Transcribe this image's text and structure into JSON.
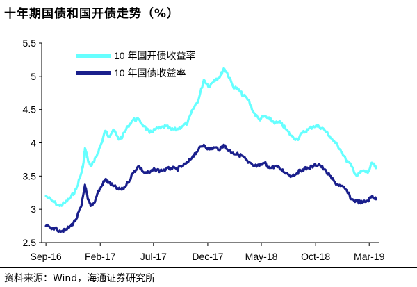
{
  "header": {
    "title": "十年期国债和国开债走势（%）"
  },
  "footer": {
    "source": "资料来源：Wind，海通证券研究所"
  },
  "chart_data": {
    "type": "line",
    "title": "十年期国债和国开债走势（%）",
    "xlabel": "",
    "ylabel": "",
    "ylim": [
      2.5,
      5.5
    ],
    "yticks": [
      "2.5",
      "3",
      "3.5",
      "4",
      "4.5",
      "5",
      "5.5"
    ],
    "xticks": [
      "Sep-16",
      "Feb-17",
      "Jul-17",
      "Dec-17",
      "May-18",
      "Oct-18",
      "Mar-19"
    ],
    "grid": false,
    "legend": "top-left",
    "series": [
      {
        "name": "10 年国开债收益率",
        "color": "#66ffff",
        "points": [
          [
            "2016-09-01",
            3.2
          ],
          [
            "2016-09-20",
            3.12
          ],
          [
            "2016-10-10",
            3.05
          ],
          [
            "2016-10-25",
            3.1
          ],
          [
            "2016-11-10",
            3.18
          ],
          [
            "2016-11-25",
            3.3
          ],
          [
            "2016-12-10",
            3.55
          ],
          [
            "2016-12-16",
            3.7
          ],
          [
            "2016-12-20",
            3.92
          ],
          [
            "2016-12-28",
            3.75
          ],
          [
            "2017-01-05",
            3.65
          ],
          [
            "2017-01-15",
            3.72
          ],
          [
            "2017-01-25",
            3.85
          ],
          [
            "2017-02-05",
            4.0
          ],
          [
            "2017-02-15",
            4.18
          ],
          [
            "2017-02-25",
            4.1
          ],
          [
            "2017-03-10",
            4.2
          ],
          [
            "2017-03-25",
            4.05
          ],
          [
            "2017-04-05",
            4.1
          ],
          [
            "2017-04-20",
            4.25
          ],
          [
            "2017-05-05",
            4.35
          ],
          [
            "2017-05-20",
            4.35
          ],
          [
            "2017-06-05",
            4.25
          ],
          [
            "2017-06-20",
            4.15
          ],
          [
            "2017-07-05",
            4.2
          ],
          [
            "2017-07-20",
            4.22
          ],
          [
            "2017-08-05",
            4.25
          ],
          [
            "2017-08-20",
            4.2
          ],
          [
            "2017-09-05",
            4.2
          ],
          [
            "2017-09-20",
            4.25
          ],
          [
            "2017-10-05",
            4.3
          ],
          [
            "2017-10-20",
            4.5
          ],
          [
            "2017-11-05",
            4.65
          ],
          [
            "2017-11-20",
            4.95
          ],
          [
            "2017-12-05",
            4.85
          ],
          [
            "2017-12-20",
            4.95
          ],
          [
            "2018-01-05",
            5.0
          ],
          [
            "2018-01-15",
            5.12
          ],
          [
            "2018-01-25",
            5.05
          ],
          [
            "2018-02-10",
            4.85
          ],
          [
            "2018-02-25",
            4.8
          ],
          [
            "2018-03-10",
            4.72
          ],
          [
            "2018-03-25",
            4.65
          ],
          [
            "2018-04-10",
            4.45
          ],
          [
            "2018-04-25",
            4.35
          ],
          [
            "2018-05-10",
            4.4
          ],
          [
            "2018-05-25",
            4.35
          ],
          [
            "2018-06-10",
            4.3
          ],
          [
            "2018-06-25",
            4.3
          ],
          [
            "2018-07-10",
            4.2
          ],
          [
            "2018-07-25",
            4.1
          ],
          [
            "2018-08-10",
            4.05
          ],
          [
            "2018-08-25",
            4.15
          ],
          [
            "2018-09-10",
            4.2
          ],
          [
            "2018-09-25",
            4.25
          ],
          [
            "2018-10-10",
            4.25
          ],
          [
            "2018-10-25",
            4.2
          ],
          [
            "2018-11-10",
            4.1
          ],
          [
            "2018-11-25",
            4.0
          ],
          [
            "2018-12-10",
            3.9
          ],
          [
            "2018-12-25",
            3.75
          ],
          [
            "2019-01-10",
            3.65
          ],
          [
            "2019-01-25",
            3.5
          ],
          [
            "2019-02-10",
            3.58
          ],
          [
            "2019-02-25",
            3.55
          ],
          [
            "2019-03-10",
            3.7
          ],
          [
            "2019-03-20",
            3.62
          ]
        ]
      },
      {
        "name": "10 年国债收益率",
        "color": "#1a1f8c",
        "points": [
          [
            "2016-09-01",
            2.75
          ],
          [
            "2016-09-20",
            2.72
          ],
          [
            "2016-10-10",
            2.68
          ],
          [
            "2016-10-25",
            2.68
          ],
          [
            "2016-11-10",
            2.75
          ],
          [
            "2016-11-25",
            2.85
          ],
          [
            "2016-12-10",
            3.05
          ],
          [
            "2016-12-20",
            3.37
          ],
          [
            "2016-12-28",
            3.15
          ],
          [
            "2017-01-05",
            3.05
          ],
          [
            "2017-01-15",
            3.1
          ],
          [
            "2017-01-25",
            3.25
          ],
          [
            "2017-02-05",
            3.35
          ],
          [
            "2017-02-15",
            3.45
          ],
          [
            "2017-02-25",
            3.4
          ],
          [
            "2017-03-10",
            3.35
          ],
          [
            "2017-03-25",
            3.3
          ],
          [
            "2017-04-05",
            3.3
          ],
          [
            "2017-04-20",
            3.4
          ],
          [
            "2017-05-05",
            3.55
          ],
          [
            "2017-05-20",
            3.65
          ],
          [
            "2017-06-05",
            3.55
          ],
          [
            "2017-06-20",
            3.55
          ],
          [
            "2017-07-05",
            3.6
          ],
          [
            "2017-07-20",
            3.58
          ],
          [
            "2017-08-05",
            3.6
          ],
          [
            "2017-08-20",
            3.62
          ],
          [
            "2017-09-05",
            3.6
          ],
          [
            "2017-09-20",
            3.65
          ],
          [
            "2017-10-05",
            3.7
          ],
          [
            "2017-10-20",
            3.8
          ],
          [
            "2017-11-05",
            3.9
          ],
          [
            "2017-11-20",
            3.97
          ],
          [
            "2017-12-05",
            3.9
          ],
          [
            "2017-12-20",
            3.93
          ],
          [
            "2018-01-05",
            3.9
          ],
          [
            "2018-01-15",
            3.97
          ],
          [
            "2018-01-25",
            3.9
          ],
          [
            "2018-02-10",
            3.85
          ],
          [
            "2018-02-25",
            3.82
          ],
          [
            "2018-03-10",
            3.8
          ],
          [
            "2018-03-25",
            3.7
          ],
          [
            "2018-04-10",
            3.65
          ],
          [
            "2018-04-25",
            3.65
          ],
          [
            "2018-05-10",
            3.7
          ],
          [
            "2018-05-25",
            3.62
          ],
          [
            "2018-06-10",
            3.65
          ],
          [
            "2018-06-25",
            3.6
          ],
          [
            "2018-07-10",
            3.55
          ],
          [
            "2018-07-25",
            3.5
          ],
          [
            "2018-08-10",
            3.55
          ],
          [
            "2018-08-25",
            3.6
          ],
          [
            "2018-09-10",
            3.62
          ],
          [
            "2018-09-25",
            3.65
          ],
          [
            "2018-10-10",
            3.68
          ],
          [
            "2018-10-25",
            3.6
          ],
          [
            "2018-11-10",
            3.5
          ],
          [
            "2018-11-25",
            3.4
          ],
          [
            "2018-12-10",
            3.35
          ],
          [
            "2018-12-25",
            3.3
          ],
          [
            "2019-01-10",
            3.15
          ],
          [
            "2019-01-25",
            3.12
          ],
          [
            "2019-02-10",
            3.1
          ],
          [
            "2019-02-25",
            3.13
          ],
          [
            "2019-03-10",
            3.2
          ],
          [
            "2019-03-20",
            3.15
          ]
        ]
      }
    ]
  }
}
